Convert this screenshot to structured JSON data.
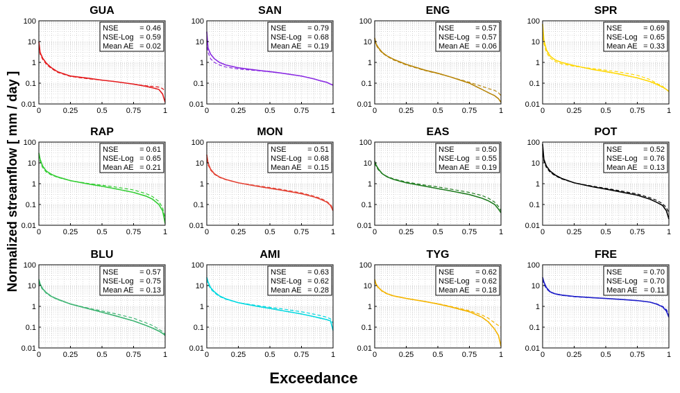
{
  "figure": {
    "ylabel": "Normalized streamflow  [ mm / day ]",
    "xlabel": "Exceedance"
  },
  "chart_data": {
    "type": "line",
    "yscale": "log",
    "ylim": [
      0.01,
      100
    ],
    "xlim": [
      0,
      1
    ],
    "xticks": [
      "0",
      "0.25",
      "0.5",
      "0.75",
      "1"
    ],
    "yticks": [
      "0.01",
      "0.1",
      "1",
      "10",
      "100"
    ],
    "grid": true,
    "stat_labels": [
      "NSE",
      "NSE-Log",
      "Mean AE"
    ],
    "panels": [
      {
        "title": "GUA",
        "color": "#e41a1c",
        "stats": [
          "= 0.46",
          "= 0.59",
          "= 0.02"
        ],
        "x": [
          0,
          0.01,
          0.03,
          0.06,
          0.1,
          0.15,
          0.25,
          0.4,
          0.5,
          0.6,
          0.75,
          0.85,
          0.9,
          0.95,
          0.98,
          1
        ],
        "observed": [
          10,
          3,
          1.6,
          0.9,
          0.55,
          0.35,
          0.22,
          0.17,
          0.14,
          0.12,
          0.09,
          0.07,
          0.06,
          0.05,
          0.03,
          0.012
        ],
        "simulated": [
          6,
          2.5,
          1.4,
          0.8,
          0.5,
          0.33,
          0.21,
          0.16,
          0.14,
          0.12,
          0.09,
          0.075,
          0.07,
          0.065,
          0.055,
          0.04
        ]
      },
      {
        "title": "SAN",
        "color": "#8a2be2",
        "stats": [
          "= 0.79",
          "= 0.68",
          "= 0.19"
        ],
        "x": [
          0,
          0.01,
          0.03,
          0.06,
          0.1,
          0.15,
          0.25,
          0.4,
          0.5,
          0.6,
          0.75,
          0.85,
          0.9,
          0.95,
          0.98,
          1
        ],
        "observed": [
          30,
          5,
          2.5,
          1.5,
          1.0,
          0.75,
          0.55,
          0.42,
          0.36,
          0.3,
          0.22,
          0.16,
          0.13,
          0.11,
          0.09,
          0.08
        ],
        "simulated": [
          10,
          3,
          1.5,
          1.0,
          0.75,
          0.6,
          0.48,
          0.4,
          0.35,
          0.3,
          0.22,
          0.16,
          0.13,
          0.11,
          0.09,
          0.08
        ]
      },
      {
        "title": "ENG",
        "color": "#b8860b",
        "stats": [
          "= 0.57",
          "= 0.57",
          "= 0.06"
        ],
        "x": [
          0,
          0.01,
          0.03,
          0.06,
          0.1,
          0.15,
          0.25,
          0.4,
          0.5,
          0.6,
          0.75,
          0.85,
          0.9,
          0.95,
          0.98,
          1
        ],
        "observed": [
          15,
          8,
          5,
          3,
          2,
          1.4,
          0.8,
          0.42,
          0.3,
          0.2,
          0.1,
          0.05,
          0.035,
          0.025,
          0.018,
          0.012
        ],
        "simulated": [
          12,
          7,
          4.5,
          2.8,
          1.9,
          1.3,
          0.75,
          0.4,
          0.29,
          0.2,
          0.11,
          0.07,
          0.055,
          0.045,
          0.035,
          0.025
        ]
      },
      {
        "title": "SPR",
        "color": "#ffd700",
        "stats": [
          "= 0.69",
          "= 0.65",
          "= 0.33"
        ],
        "x": [
          0,
          0.01,
          0.03,
          0.06,
          0.1,
          0.15,
          0.25,
          0.4,
          0.5,
          0.6,
          0.75,
          0.85,
          0.9,
          0.95,
          0.98,
          1
        ],
        "observed": [
          70,
          12,
          4,
          2,
          1.3,
          1.0,
          0.7,
          0.45,
          0.36,
          0.28,
          0.18,
          0.12,
          0.09,
          0.065,
          0.05,
          0.04
        ],
        "simulated": [
          30,
          8,
          3,
          1.6,
          1.1,
          0.85,
          0.65,
          0.5,
          0.42,
          0.35,
          0.24,
          0.15,
          0.1,
          0.07,
          0.05,
          0.04
        ]
      },
      {
        "title": "RAP",
        "color": "#32cd32",
        "stats": [
          "= 0.61",
          "= 0.65",
          "= 0.21"
        ],
        "x": [
          0,
          0.01,
          0.03,
          0.06,
          0.1,
          0.15,
          0.25,
          0.4,
          0.5,
          0.6,
          0.75,
          0.85,
          0.9,
          0.95,
          0.98,
          1
        ],
        "observed": [
          30,
          15,
          7,
          4,
          2.8,
          2.1,
          1.4,
          0.95,
          0.75,
          0.58,
          0.38,
          0.25,
          0.18,
          0.1,
          0.05,
          0.012
        ],
        "simulated": [
          25,
          12,
          6,
          3.5,
          2.6,
          2.0,
          1.4,
          1.0,
          0.85,
          0.7,
          0.5,
          0.33,
          0.24,
          0.14,
          0.07,
          0.02
        ]
      },
      {
        "title": "MON",
        "color": "#e34234",
        "stats": [
          "= 0.51",
          "= 0.68",
          "= 0.15"
        ],
        "x": [
          0,
          0.01,
          0.03,
          0.06,
          0.1,
          0.15,
          0.25,
          0.4,
          0.5,
          0.6,
          0.75,
          0.85,
          0.9,
          0.95,
          0.98,
          1
        ],
        "observed": [
          25,
          10,
          5,
          3,
          2.1,
          1.6,
          1.1,
          0.75,
          0.6,
          0.48,
          0.33,
          0.23,
          0.18,
          0.13,
          0.09,
          0.05
        ],
        "simulated": [
          15,
          8,
          4.5,
          2.8,
          2.0,
          1.55,
          1.1,
          0.8,
          0.65,
          0.52,
          0.36,
          0.25,
          0.2,
          0.14,
          0.1,
          0.06
        ]
      },
      {
        "title": "EAS",
        "color": "#1e7b1e",
        "stats": [
          "= 0.50",
          "= 0.55",
          "= 0.19"
        ],
        "x": [
          0,
          0.01,
          0.03,
          0.06,
          0.1,
          0.15,
          0.25,
          0.4,
          0.5,
          0.6,
          0.75,
          0.85,
          0.9,
          0.95,
          0.98,
          1
        ],
        "observed": [
          12,
          8,
          5,
          3,
          2.1,
          1.6,
          1.1,
          0.75,
          0.58,
          0.45,
          0.3,
          0.2,
          0.15,
          0.1,
          0.06,
          0.04
        ],
        "simulated": [
          10,
          7,
          4.5,
          3,
          2.2,
          1.7,
          1.2,
          0.85,
          0.7,
          0.55,
          0.38,
          0.27,
          0.2,
          0.13,
          0.08,
          0.05
        ]
      },
      {
        "title": "POT",
        "color": "#000000",
        "stats": [
          "= 0.52",
          "= 0.76",
          "= 0.13"
        ],
        "x": [
          0,
          0.01,
          0.03,
          0.06,
          0.1,
          0.15,
          0.25,
          0.4,
          0.5,
          0.6,
          0.75,
          0.85,
          0.9,
          0.95,
          0.98,
          1
        ],
        "observed": [
          80,
          15,
          7,
          4,
          2.6,
          1.8,
          1.1,
          0.7,
          0.55,
          0.42,
          0.28,
          0.18,
          0.13,
          0.09,
          0.05,
          0.02
        ],
        "simulated": [
          50,
          12,
          6,
          3.5,
          2.4,
          1.7,
          1.1,
          0.75,
          0.6,
          0.47,
          0.32,
          0.21,
          0.16,
          0.11,
          0.07,
          0.04
        ]
      },
      {
        "title": "BLU",
        "color": "#3cb371",
        "stats": [
          "= 0.57",
          "= 0.75",
          "= 0.13"
        ],
        "x": [
          0,
          0.01,
          0.03,
          0.06,
          0.1,
          0.15,
          0.25,
          0.4,
          0.5,
          0.6,
          0.75,
          0.85,
          0.9,
          0.95,
          0.98,
          1
        ],
        "observed": [
          20,
          12,
          7,
          4.5,
          3,
          2.2,
          1.3,
          0.75,
          0.52,
          0.36,
          0.2,
          0.12,
          0.09,
          0.065,
          0.05,
          0.04
        ],
        "simulated": [
          15,
          10,
          6.5,
          4.2,
          2.9,
          2.1,
          1.3,
          0.8,
          0.6,
          0.45,
          0.27,
          0.16,
          0.12,
          0.08,
          0.06,
          0.045
        ]
      },
      {
        "title": "AMI",
        "color": "#00d8e0",
        "stats": [
          "= 0.63",
          "= 0.62",
          "= 0.28"
        ],
        "x": [
          0,
          0.01,
          0.03,
          0.06,
          0.1,
          0.15,
          0.25,
          0.4,
          0.5,
          0.6,
          0.75,
          0.85,
          0.9,
          0.95,
          0.98,
          1
        ],
        "observed": [
          25,
          15,
          8,
          5,
          3.2,
          2.3,
          1.5,
          1.0,
          0.8,
          0.62,
          0.43,
          0.32,
          0.27,
          0.23,
          0.2,
          0.07
        ],
        "simulated": [
          20,
          12,
          7,
          4.5,
          3,
          2.2,
          1.5,
          1.1,
          0.9,
          0.75,
          0.55,
          0.42,
          0.36,
          0.3,
          0.25,
          0.15
        ]
      },
      {
        "title": "TYG",
        "color": "#f4b400",
        "stats": [
          "= 0.62",
          "= 0.62",
          "= 0.18"
        ],
        "x": [
          0,
          0.01,
          0.03,
          0.06,
          0.1,
          0.15,
          0.25,
          0.4,
          0.5,
          0.6,
          0.75,
          0.85,
          0.9,
          0.95,
          0.98,
          1
        ],
        "observed": [
          20,
          12,
          8,
          5.5,
          4,
          3.2,
          2.4,
          1.7,
          1.3,
          0.95,
          0.55,
          0.3,
          0.18,
          0.08,
          0.04,
          0.012
        ],
        "simulated": [
          18,
          11,
          7.5,
          5.2,
          3.9,
          3.1,
          2.4,
          1.7,
          1.35,
          1.0,
          0.62,
          0.38,
          0.27,
          0.16,
          0.12,
          0.1
        ]
      },
      {
        "title": "FRE",
        "color": "#1c1cc8",
        "stats": [
          "= 0.70",
          "= 0.70",
          "= 0.11"
        ],
        "x": [
          0,
          0.01,
          0.03,
          0.06,
          0.1,
          0.15,
          0.25,
          0.4,
          0.5,
          0.6,
          0.75,
          0.85,
          0.9,
          0.95,
          0.98,
          1
        ],
        "observed": [
          25,
          15,
          8,
          5,
          4,
          3.5,
          3,
          2.6,
          2.4,
          2.2,
          1.9,
          1.6,
          1.3,
          0.95,
          0.6,
          0.3
        ],
        "simulated": [
          20,
          12,
          7,
          4.8,
          3.9,
          3.4,
          2.9,
          2.6,
          2.4,
          2.2,
          1.9,
          1.6,
          1.35,
          1.0,
          0.7,
          0.4
        ]
      }
    ]
  }
}
